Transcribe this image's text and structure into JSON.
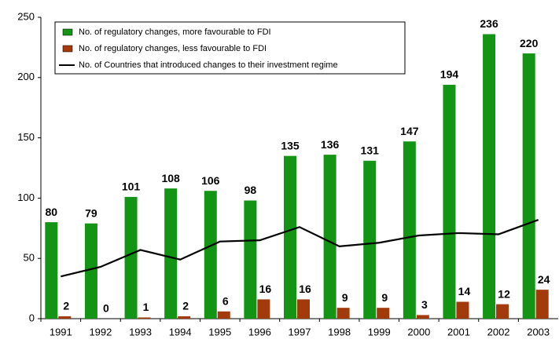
{
  "chart_data": {
    "type": "bar",
    "categories": [
      "1991",
      "1992",
      "1993",
      "1994",
      "1995",
      "1996",
      "1997",
      "1998",
      "1999",
      "2000",
      "2001",
      "2002",
      "2003"
    ],
    "series": [
      {
        "name": "No. of regulatory changes, more favourable to FDI",
        "color": "#149414",
        "type": "bar",
        "values": [
          80,
          79,
          101,
          108,
          106,
          98,
          135,
          136,
          131,
          147,
          194,
          236,
          220
        ]
      },
      {
        "name": "No. of regulatory changes, less favourable to FDI",
        "color": "#a23a0c",
        "type": "bar",
        "values": [
          2,
          0,
          1,
          2,
          6,
          16,
          16,
          9,
          9,
          3,
          14,
          12,
          24
        ]
      },
      {
        "name": "No. of Countries that introduced changes to their investment regime",
        "color": "#000000",
        "type": "line",
        "values": [
          35,
          43,
          57,
          49,
          64,
          65,
          76,
          60,
          63,
          69,
          71,
          70,
          82
        ]
      }
    ],
    "ylim": [
      0,
      250
    ],
    "yticks": [
      0,
      50,
      100,
      150,
      200,
      250
    ],
    "grid": false
  }
}
